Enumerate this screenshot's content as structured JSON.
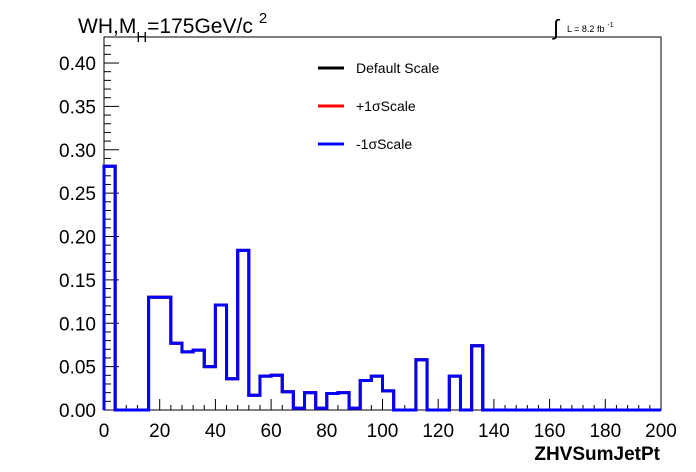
{
  "chart_data": {
    "type": "histogram",
    "title": {
      "main": "WH,M",
      "subscript": "H",
      "rest": "=175GeV/c",
      "superscript": "2"
    },
    "luminosity": {
      "integral_symbol": "∫",
      "label": "L = 8.2 fb",
      "superscript": "-1"
    },
    "xlabel": "ZHVSumJetPt",
    "ylabel": "",
    "xlim": [
      0,
      200
    ],
    "ylim": [
      0,
      0.43
    ],
    "x_ticks": [
      0,
      20,
      40,
      60,
      80,
      100,
      120,
      140,
      160,
      180,
      200
    ],
    "x_tick_labels": [
      "0",
      "20",
      "40",
      "60",
      "80",
      "100",
      "120",
      "140",
      "160",
      "180",
      "200"
    ],
    "y_ticks": [
      0,
      0.05,
      0.1,
      0.15,
      0.2,
      0.25,
      0.3,
      0.35,
      0.4
    ],
    "y_tick_labels": [
      "0.00",
      "0.05",
      "0.10",
      "0.15",
      "0.20",
      "0.25",
      "0.30",
      "0.35",
      "0.40"
    ],
    "bin_edges": [
      0,
      4,
      16,
      24,
      28,
      32,
      36,
      40,
      44,
      48,
      52,
      56,
      60,
      64,
      68,
      72,
      76,
      80,
      84,
      88,
      92,
      96,
      100,
      104,
      112,
      116,
      124,
      128,
      132,
      136,
      140,
      200
    ],
    "legend_position": "top-center",
    "series": [
      {
        "name": "Default Scale",
        "color": "#000000",
        "values": [
          0.281,
          0.0,
          0.13,
          0.077,
          0.067,
          0.069,
          0.05,
          0.121,
          0.036,
          0.184,
          0.017,
          0.039,
          0.04,
          0.021,
          0.002,
          0.02,
          0.002,
          0.019,
          0.02,
          0.002,
          0.034,
          0.039,
          0.022,
          0.0,
          0.058,
          0.0,
          0.039,
          0.0,
          0.074,
          0.0,
          0.0
        ]
      },
      {
        "name": "+1σScale",
        "color": "#ff0000",
        "values": [
          0.281,
          0.0,
          0.13,
          0.077,
          0.067,
          0.069,
          0.05,
          0.121,
          0.036,
          0.184,
          0.017,
          0.039,
          0.04,
          0.021,
          0.002,
          0.02,
          0.002,
          0.019,
          0.02,
          0.002,
          0.034,
          0.039,
          0.022,
          0.0,
          0.058,
          0.0,
          0.039,
          0.0,
          0.074,
          0.0,
          0.0
        ]
      },
      {
        "name": "-1σScale",
        "color": "#0000ff",
        "values": [
          0.281,
          0.0,
          0.13,
          0.077,
          0.067,
          0.069,
          0.05,
          0.121,
          0.036,
          0.184,
          0.017,
          0.039,
          0.04,
          0.021,
          0.002,
          0.02,
          0.002,
          0.019,
          0.02,
          0.002,
          0.034,
          0.039,
          0.022,
          0.0,
          0.058,
          0.0,
          0.039,
          0.0,
          0.074,
          0.0,
          0.0
        ]
      }
    ]
  }
}
